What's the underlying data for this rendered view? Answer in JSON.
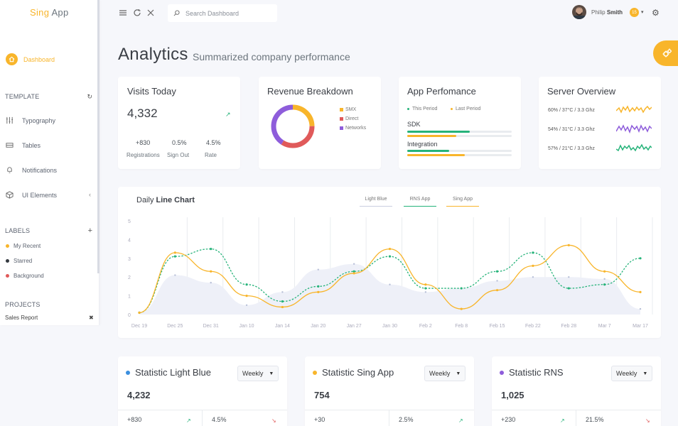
{
  "logo": {
    "part1": "Sing",
    "part2": "App"
  },
  "sidebar": {
    "dashboard": "Dashboard",
    "template_header": "TEMPLATE",
    "items": [
      {
        "label": "Typography",
        "icon": "typography-icon"
      },
      {
        "label": "Tables",
        "icon": "tables-icon"
      },
      {
        "label": "Notifications",
        "icon": "bell-icon"
      },
      {
        "label": "UI Elements",
        "icon": "cube-icon"
      }
    ],
    "labels_header": "LABELS",
    "labels": [
      {
        "label": "My Recent",
        "color": "#f8b52b"
      },
      {
        "label": "Starred",
        "color": "#343a40"
      },
      {
        "label": "Background",
        "color": "#e05a5a"
      }
    ],
    "projects_header": "PROJECTS",
    "project_item": "Sales Report"
  },
  "topbar": {
    "search_placeholder": "Search Dashboard",
    "user_first": "Philip",
    "user_last": "Smith",
    "badge": "15"
  },
  "page": {
    "title": "Analytics",
    "subtitle": "Summarized company performance"
  },
  "visits": {
    "title": "Visits Today",
    "value": "4,332",
    "stats": [
      {
        "value": "+830",
        "label": "Registrations"
      },
      {
        "value": "0.5%",
        "label": "Sign Out"
      },
      {
        "value": "4.5%",
        "label": "Rate"
      }
    ]
  },
  "revenue": {
    "title": "Revenue Breakdown",
    "legend": [
      {
        "label": "SMX",
        "color": "#f8b52b"
      },
      {
        "label": "Direct",
        "color": "#e05a5a"
      },
      {
        "label": "Networks",
        "color": "#8e5ddb"
      }
    ]
  },
  "app_perf": {
    "title": "App Perfomance",
    "legend": [
      {
        "label": "This Period",
        "color": "#26b37a"
      },
      {
        "label": "Last Period",
        "color": "#f8b52b"
      }
    ],
    "bars": [
      {
        "label": "SDK",
        "this": 0.6,
        "last": 0.47
      },
      {
        "label": "Integration",
        "this": 0.4,
        "last": 0.55
      }
    ]
  },
  "server": {
    "title": "Server Overview",
    "rows": [
      {
        "label": "60% / 37°C / 3.3 Ghz",
        "color": "#f8b52b"
      },
      {
        "label": "54% / 31°C / 3.3 Ghz",
        "color": "#8e5ddb"
      },
      {
        "label": "57% / 21°C / 3.3 Ghz",
        "color": "#26b37a"
      }
    ]
  },
  "line_chart": {
    "title_prefix": "Daily",
    "title_bold": "Line Chart",
    "tabs": [
      "Light Blue",
      "RNS App",
      "Sing App"
    ],
    "tab_colors": [
      "#c9cfe0",
      "#26b37a",
      "#f8b52b"
    ]
  },
  "chart_data": {
    "type": "line",
    "categories": [
      "Dec 19",
      "Dec 25",
      "Dec 31",
      "Jan 10",
      "Jan 14",
      "Jan 20",
      "Jan 27",
      "Jan 30",
      "Feb 2",
      "Feb 8",
      "Feb 15",
      "Feb 22",
      "Feb 28",
      "Mar 7",
      "Mar 17"
    ],
    "yticks": [
      "0",
      "1",
      "2",
      "3",
      "4",
      "5"
    ],
    "ylim": [
      0,
      5
    ],
    "series": [
      {
        "name": "Light Blue",
        "color": "#c9cfe0",
        "type": "area",
        "values": [
          0.1,
          2.1,
          1.7,
          0.5,
          1.2,
          2.4,
          2.7,
          1.6,
          1.2,
          1.4,
          1.8,
          2.0,
          2.0,
          1.9,
          0.3
        ]
      },
      {
        "name": "RNS App",
        "color": "#26b37a",
        "values": [
          0.1,
          3.1,
          3.5,
          1.6,
          0.7,
          1.5,
          2.3,
          3.1,
          1.4,
          1.4,
          2.3,
          3.3,
          1.4,
          1.6,
          3.0
        ]
      },
      {
        "name": "Sing App",
        "color": "#f8b52b",
        "values": [
          0.1,
          3.3,
          2.3,
          1.0,
          0.4,
          1.2,
          2.2,
          3.5,
          1.6,
          0.3,
          1.3,
          2.6,
          3.7,
          2.3,
          1.2
        ]
      }
    ]
  },
  "stats": [
    {
      "title": "Statistic Light Blue",
      "color": "#3b8fdf",
      "dropdown": "Weekly",
      "value": "4,232",
      "sub1": "+830",
      "sub2": "4.5%",
      "arr1": "up",
      "arr2": "down"
    },
    {
      "title": "Statistic Sing App",
      "color": "#f8b52b",
      "dropdown": "Weekly",
      "value": "754",
      "sub1": "+30",
      "sub2": "2.5%",
      "arr1": "up",
      "arr2": "up"
    },
    {
      "title": "Statistic RNS",
      "color": "#8e5ddb",
      "dropdown": "Weekly",
      "value": "1,025",
      "sub1": "+230",
      "sub2": "21.5%",
      "arr1": "up",
      "arr2": "down"
    }
  ]
}
